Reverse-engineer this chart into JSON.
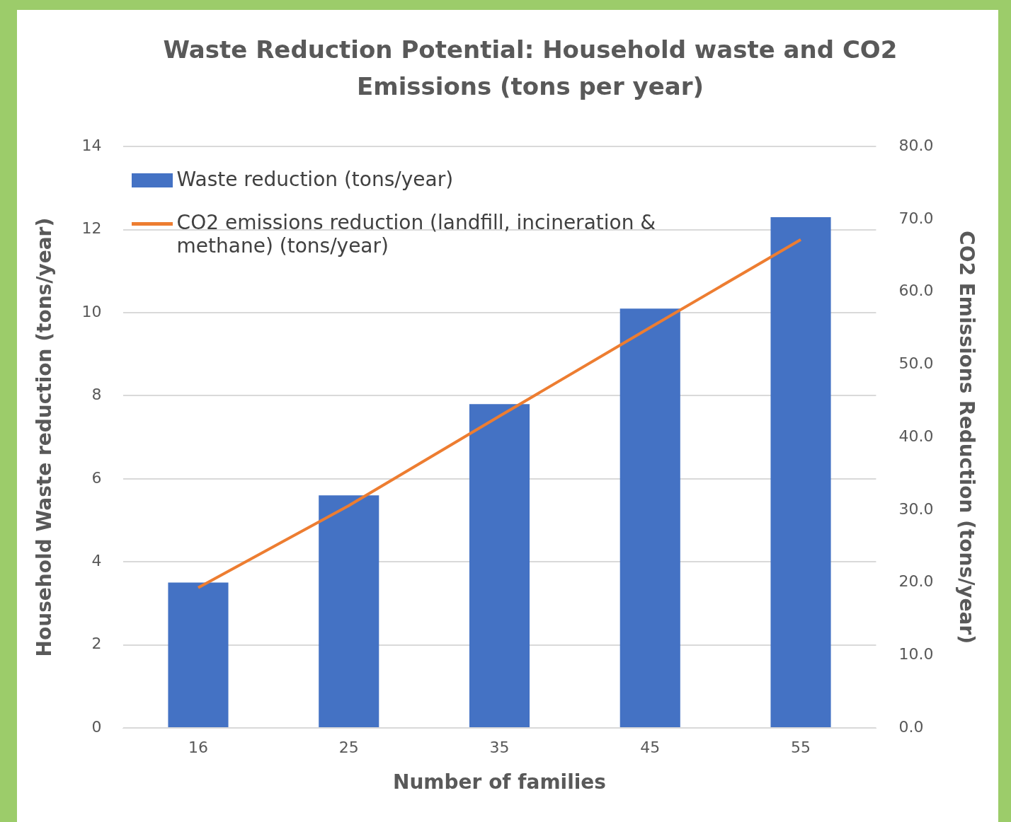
{
  "chart_data": {
    "type": "bar",
    "title": "Waste Reduction Potential: Household waste and CO2 Emissions (tons per year)",
    "xlabel": "Number of families",
    "ylabel": "Household Waste reduction (tons/year)",
    "y2label": "CO2 Emissions Reduction (tons/year)",
    "categories": [
      "16",
      "25",
      "35",
      "45",
      "55"
    ],
    "series": [
      {
        "name": "Waste reduction (tons/year)",
        "color": "#4472c4",
        "values": [
          3.5,
          5.6,
          7.8,
          10.1,
          12.3
        ]
      },
      {
        "name": "CO2 emissions reduction (landfill, incineration & methane) (tons/year)",
        "type": "line",
        "axis": "y2",
        "color": "#ed7d31",
        "values": [
          19.3,
          30.6,
          42.9,
          55.1,
          67.2
        ]
      }
    ],
    "ylim": [
      0,
      14
    ],
    "yticks": [
      0,
      2,
      4,
      6,
      8,
      10,
      12,
      14
    ],
    "y2lim": [
      0,
      80
    ],
    "y2ticks": [
      {
        "value": 0,
        "label": "0.0"
      },
      {
        "value": 10,
        "label": "10.0"
      },
      {
        "value": 20,
        "label": "20.0"
      },
      {
        "value": 30,
        "label": "30.0"
      },
      {
        "value": 40,
        "label": "40.0"
      },
      {
        "value": 50,
        "label": "50.0"
      },
      {
        "value": 60,
        "label": "60.0"
      },
      {
        "value": 70,
        "label": "70.0"
      },
      {
        "value": 80,
        "label": "80.0"
      }
    ],
    "grid": "y",
    "legend": "top left",
    "marker": "none",
    "line_style": "solid"
  }
}
